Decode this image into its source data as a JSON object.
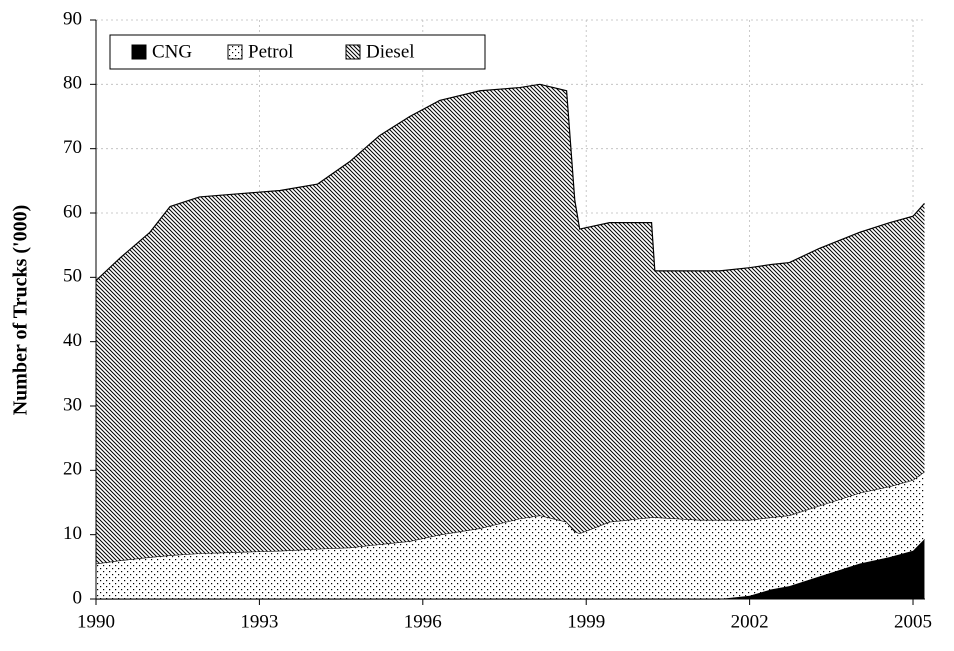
{
  "chart_data": {
    "type": "stacked_area",
    "y_label": "Number of Trucks ('000)",
    "x": [
      1990,
      1990.44,
      1990.99,
      1991.36,
      1991.9,
      1992.64,
      1993.38,
      1994.07,
      1994.66,
      1995.2,
      1995.76,
      1996.31,
      1997.05,
      1997.78,
      1998.15,
      1998.64,
      1998.79,
      1998.88,
      1999.43,
      2000.2,
      2000.26,
      2001.08,
      2001.45,
      2002.0,
      2002.4,
      2002.73,
      2003.28,
      2004.02,
      2004.57,
      2005.0,
      2005.21
    ],
    "series": [
      {
        "name": "CNG",
        "color": "#000000",
        "pattern": "solid",
        "values": [
          0,
          0,
          0,
          0,
          0,
          0,
          0,
          0,
          0,
          0,
          0,
          0,
          0,
          0,
          0,
          0,
          0,
          0,
          0,
          0,
          0,
          0,
          0,
          0.5,
          1.5,
          2,
          3.5,
          5.5,
          6.5,
          7.5,
          9.3
        ]
      },
      {
        "name": "Petrol",
        "color": "#000000",
        "pattern": "dots",
        "values": [
          5.5,
          6,
          6.5,
          6.8,
          7.1,
          7.3,
          7.5,
          7.8,
          8,
          8.5,
          9,
          10,
          11,
          12.5,
          13,
          12,
          10.5,
          10.2,
          12,
          12.7,
          12.7,
          12.3,
          12.3,
          11.8,
          11.2,
          11,
          11,
          11,
          11,
          11,
          10.5
        ]
      },
      {
        "name": "Diesel",
        "color": "#000000",
        "pattern": "hatch",
        "values": [
          44,
          47,
          50.5,
          54.2,
          55.4,
          55.7,
          56,
          56.7,
          60,
          63.5,
          66,
          67.5,
          68,
          67,
          67,
          67,
          51.5,
          47.3,
          46.5,
          45.8,
          38.3,
          38.7,
          38.7,
          39.2,
          39.3,
          39.3,
          40,
          40.5,
          41,
          41,
          41.7
        ]
      }
    ],
    "xlim": [
      1990,
      2005.22
    ],
    "xticks": [
      1990,
      1993,
      1996,
      1999,
      2002,
      2005
    ],
    "ylim": [
      0,
      90
    ],
    "yticks": [
      0,
      10,
      20,
      30,
      40,
      50,
      60,
      70,
      80,
      90
    ],
    "grid": true,
    "legend": "top-left"
  }
}
